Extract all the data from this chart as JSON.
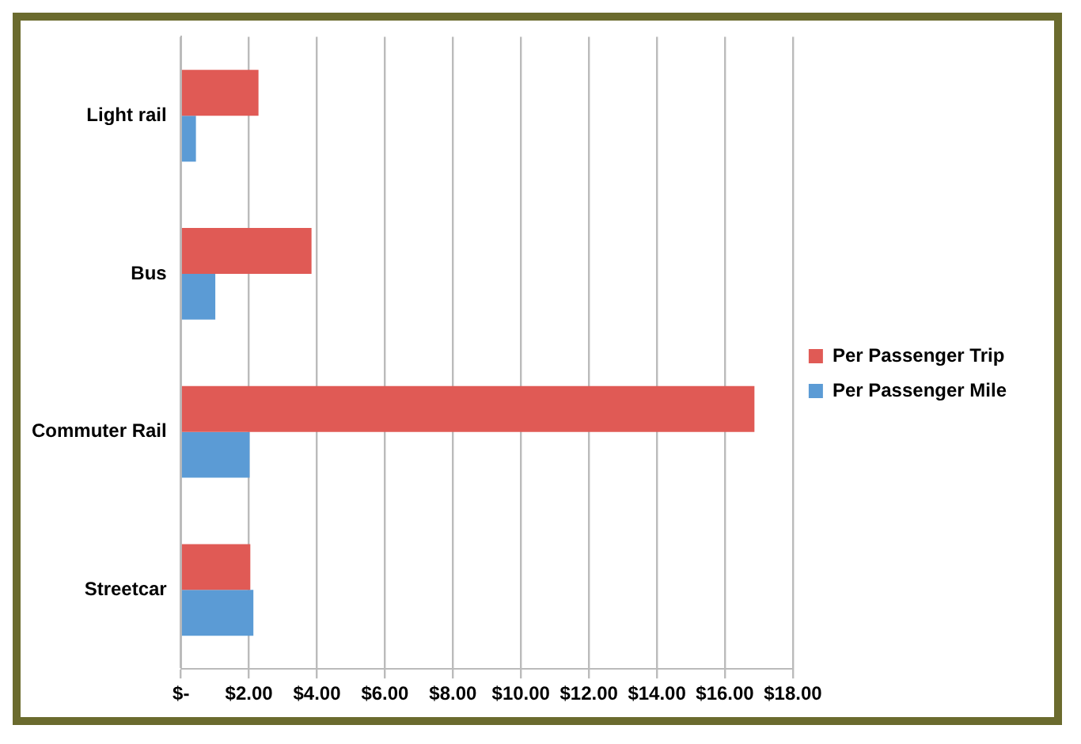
{
  "chart_data": {
    "type": "bar",
    "orientation": "horizontal",
    "categories": [
      "Light rail",
      "Bus",
      "Commuter Rail",
      "Streetcar"
    ],
    "series": [
      {
        "name": "Per Passenger Trip",
        "color": "#e05a55",
        "values": [
          2.28,
          3.84,
          16.87,
          2.04
        ]
      },
      {
        "name": "Per Passenger Mile",
        "color": "#5b9bd5",
        "values": [
          0.44,
          1.01,
          2.02,
          2.13
        ]
      }
    ],
    "xlim": [
      0,
      18
    ],
    "xticks": [
      {
        "value": 0,
        "label": "$-"
      },
      {
        "value": 2,
        "label": "$2.00"
      },
      {
        "value": 4,
        "label": "$4.00"
      },
      {
        "value": 6,
        "label": "$6.00"
      },
      {
        "value": 8,
        "label": "$8.00"
      },
      {
        "value": 10,
        "label": "$10.00"
      },
      {
        "value": 12,
        "label": "$12.00"
      },
      {
        "value": 14,
        "label": "$14.00"
      },
      {
        "value": 16,
        "label": "$16.00"
      },
      {
        "value": 18,
        "label": "$18.00"
      }
    ],
    "grid": "x",
    "legend": "right"
  }
}
